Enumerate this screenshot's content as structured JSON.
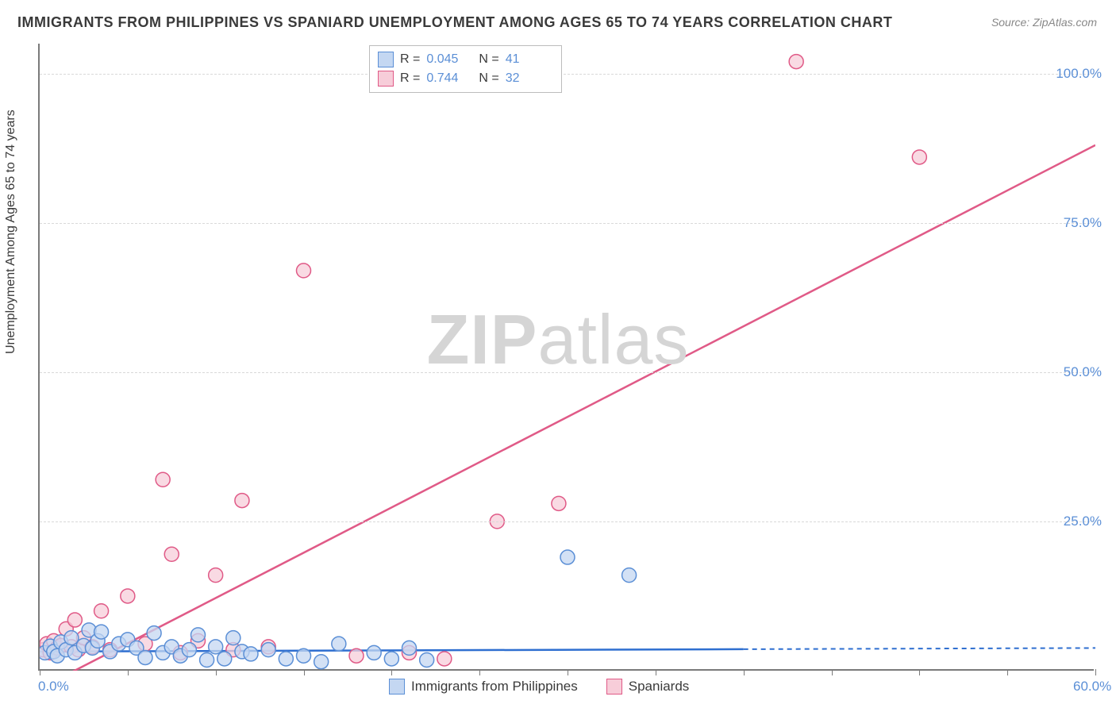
{
  "title": "IMMIGRANTS FROM PHILIPPINES VS SPANIARD UNEMPLOYMENT AMONG AGES 65 TO 74 YEARS CORRELATION CHART",
  "source": "Source: ZipAtlas.com",
  "ylabel": "Unemployment Among Ages 65 to 74 years",
  "watermark_bold": "ZIP",
  "watermark_rest": "atlas",
  "chart": {
    "type": "scatter-with-regression",
    "xlim": [
      0,
      60
    ],
    "ylim": [
      0,
      105
    ],
    "xtick_labels": [
      {
        "pos": 0,
        "label": "0.0%"
      },
      {
        "pos": 60,
        "label": "60.0%"
      }
    ],
    "ytick_labels": [
      {
        "pos": 25,
        "label": "25.0%"
      },
      {
        "pos": 50,
        "label": "50.0%"
      },
      {
        "pos": 75,
        "label": "75.0%"
      },
      {
        "pos": 100,
        "label": "100.0%"
      }
    ],
    "grid_positions_y": [
      25,
      50,
      75,
      100
    ],
    "x_tick_marks": [
      0,
      5,
      10,
      15,
      20,
      25,
      30,
      35,
      40,
      45,
      50,
      55,
      60
    ],
    "background_color": "#ffffff",
    "grid_color": "#d9d9d9",
    "axis_color": "#7a7a7a",
    "marker_radius": 9,
    "marker_stroke_width": 1.5,
    "series": [
      {
        "name": "Immigrants from Philippines",
        "fill": "#c4d7f2",
        "stroke": "#5b8fd6",
        "line_color": "#2f6fd0",
        "r_value": "0.045",
        "n_value": "41",
        "regression": {
          "x1": 0,
          "y1": 3.2,
          "x2": 40,
          "y2": 3.6,
          "dash_from_x": 40,
          "dash_to_x": 60,
          "dash_y": 3.8
        },
        "points": [
          [
            0.3,
            3.0
          ],
          [
            0.6,
            4.1
          ],
          [
            0.8,
            3.2
          ],
          [
            1.0,
            2.5
          ],
          [
            1.2,
            4.8
          ],
          [
            1.5,
            3.5
          ],
          [
            1.8,
            5.5
          ],
          [
            2.0,
            3.0
          ],
          [
            2.5,
            4.2
          ],
          [
            2.8,
            6.8
          ],
          [
            3.0,
            3.8
          ],
          [
            3.3,
            5.0
          ],
          [
            3.5,
            6.5
          ],
          [
            4.0,
            3.2
          ],
          [
            4.5,
            4.5
          ],
          [
            5.0,
            5.2
          ],
          [
            5.5,
            3.8
          ],
          [
            6.0,
            2.2
          ],
          [
            6.5,
            6.3
          ],
          [
            7.0,
            3.0
          ],
          [
            7.5,
            4.0
          ],
          [
            8.0,
            2.5
          ],
          [
            8.5,
            3.5
          ],
          [
            9.0,
            6.0
          ],
          [
            9.5,
            1.8
          ],
          [
            10.0,
            4.0
          ],
          [
            10.5,
            2.0
          ],
          [
            11.0,
            5.5
          ],
          [
            11.5,
            3.2
          ],
          [
            12.0,
            2.8
          ],
          [
            13.0,
            3.5
          ],
          [
            14.0,
            2.0
          ],
          [
            15.0,
            2.5
          ],
          [
            16.0,
            1.5
          ],
          [
            17.0,
            4.5
          ],
          [
            19.0,
            3.0
          ],
          [
            20.0,
            2.0
          ],
          [
            21.0,
            3.8
          ],
          [
            22.0,
            1.8
          ],
          [
            30.0,
            19.0
          ],
          [
            33.5,
            16.0
          ]
        ]
      },
      {
        "name": "Spaniards",
        "fill": "#f7cdd9",
        "stroke": "#e05a87",
        "line_color": "#e05a87",
        "r_value": "0.744",
        "n_value": "32",
        "regression": {
          "x1": 0,
          "y1": -3,
          "x2": 60,
          "y2": 88
        },
        "points": [
          [
            0.2,
            3.5
          ],
          [
            0.4,
            4.5
          ],
          [
            0.6,
            3.0
          ],
          [
            0.8,
            5.0
          ],
          [
            1.0,
            3.8
          ],
          [
            1.2,
            4.2
          ],
          [
            1.5,
            7.0
          ],
          [
            1.8,
            4.0
          ],
          [
            2.0,
            8.5
          ],
          [
            2.2,
            3.5
          ],
          [
            2.5,
            5.5
          ],
          [
            3.0,
            4.0
          ],
          [
            3.5,
            10.0
          ],
          [
            4.0,
            3.5
          ],
          [
            5.0,
            12.5
          ],
          [
            6.0,
            4.5
          ],
          [
            7.0,
            32.0
          ],
          [
            7.5,
            19.5
          ],
          [
            8.0,
            3.0
          ],
          [
            9.0,
            5.0
          ],
          [
            10.0,
            16.0
          ],
          [
            11.0,
            3.5
          ],
          [
            11.5,
            28.5
          ],
          [
            13.0,
            4.0
          ],
          [
            15.0,
            67.0
          ],
          [
            18.0,
            2.5
          ],
          [
            21.0,
            3.0
          ],
          [
            23.0,
            2.0
          ],
          [
            26.0,
            25.0
          ],
          [
            29.5,
            28.0
          ],
          [
            43.0,
            102.0
          ],
          [
            50.0,
            86.0
          ]
        ]
      }
    ]
  },
  "legend_top": [
    {
      "swatch_fill": "#c4d7f2",
      "swatch_stroke": "#5b8fd6",
      "r": "0.045",
      "n": "41"
    },
    {
      "swatch_fill": "#f7cdd9",
      "swatch_stroke": "#e05a87",
      "r": "0.744",
      "n": "32"
    }
  ],
  "legend_bottom": [
    {
      "swatch_fill": "#c4d7f2",
      "swatch_stroke": "#5b8fd6",
      "label": "Immigrants from Philippines"
    },
    {
      "swatch_fill": "#f7cdd9",
      "swatch_stroke": "#e05a87",
      "label": "Spaniards"
    }
  ],
  "r_label": "R =",
  "n_label": "N ="
}
